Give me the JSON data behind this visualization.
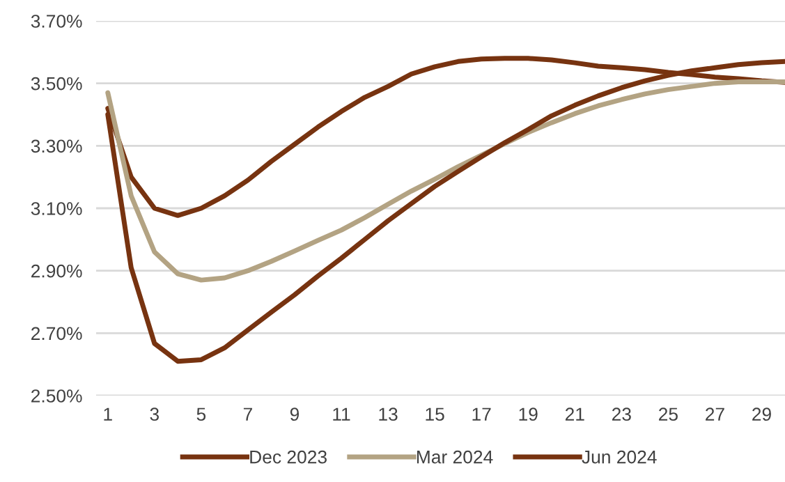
{
  "chart_data": {
    "type": "line",
    "categories": [
      "1",
      null,
      "3",
      null,
      "5",
      null,
      "7",
      null,
      "9",
      null,
      "11",
      null,
      "13",
      null,
      "15",
      null,
      "17",
      null,
      "19",
      null,
      "21",
      null,
      "23",
      null,
      "25",
      null,
      "27",
      null,
      "29",
      null
    ],
    "series": [
      {
        "name": "Dec 2023",
        "color": "#773310",
        "values": [
          3.42,
          3.2,
          3.1,
          3.077,
          3.1,
          3.14,
          3.19,
          3.25,
          3.305,
          3.36,
          3.41,
          3.455,
          3.49,
          3.53,
          3.553,
          3.57,
          3.578,
          3.58,
          3.58,
          3.575,
          3.566,
          3.555,
          3.55,
          3.544,
          3.535,
          3.528,
          3.52,
          3.515,
          3.508,
          3.503
        ]
      },
      {
        "name": "Mar 2024",
        "color": "#b3a383",
        "values": [
          3.47,
          3.14,
          2.96,
          2.89,
          2.87,
          2.877,
          2.9,
          2.93,
          2.963,
          2.997,
          3.03,
          3.07,
          3.113,
          3.155,
          3.193,
          3.233,
          3.27,
          3.307,
          3.343,
          3.374,
          3.403,
          3.428,
          3.448,
          3.466,
          3.48,
          3.49,
          3.5,
          3.505,
          3.505,
          3.505
        ]
      },
      {
        "name": "Jun 2024",
        "color": "#773310",
        "values": [
          3.4,
          2.91,
          2.667,
          2.61,
          2.615,
          2.653,
          2.71,
          2.767,
          2.823,
          2.883,
          2.94,
          3.0,
          3.06,
          3.115,
          3.17,
          3.218,
          3.265,
          3.31,
          3.352,
          3.396,
          3.43,
          3.46,
          3.486,
          3.508,
          3.526,
          3.54,
          3.55,
          3.56,
          3.566,
          3.57
        ]
      }
    ],
    "ylim": [
      2.5,
      3.7
    ],
    "yticks": [
      {
        "value": 2.5,
        "label": "2.50%"
      },
      {
        "value": 2.7,
        "label": "2.70%"
      },
      {
        "value": 2.9,
        "label": "2.90%"
      },
      {
        "value": 3.1,
        "label": "3.10%"
      },
      {
        "value": 3.3,
        "label": "3.30%"
      },
      {
        "value": 3.5,
        "label": "3.50%"
      },
      {
        "value": 3.7,
        "label": "3.70%"
      }
    ],
    "grid": "y",
    "legend": "bottom",
    "marker": "none",
    "line_style": "solid"
  }
}
